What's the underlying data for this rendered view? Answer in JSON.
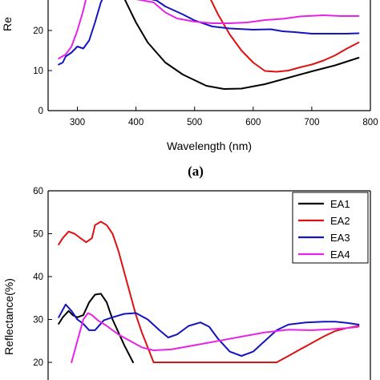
{
  "panel_label": "(a)",
  "chart_data": [
    {
      "type": "line",
      "xlabel": "Wavelength (nm)",
      "ylabel": "Re",
      "xlim": [
        250,
        800
      ],
      "ylim": [
        0,
        30
      ],
      "xticks": [
        300,
        400,
        500,
        600,
        700,
        800
      ],
      "yticks": [
        0,
        10,
        20
      ],
      "series": [
        {
          "color": "#000000",
          "points": [
            [
              370,
              30
            ],
            [
              380,
              28
            ],
            [
              400,
              22
            ],
            [
              420,
              17
            ],
            [
              450,
              12
            ],
            [
              480,
              9
            ],
            [
              500,
              7.6
            ],
            [
              520,
              6.2
            ],
            [
              550,
              5.4
            ],
            [
              580,
              5.5
            ],
            [
              620,
              6.6
            ],
            [
              660,
              8.2
            ],
            [
              700,
              9.8
            ],
            [
              740,
              11.3
            ],
            [
              780,
              13.2
            ]
          ]
        },
        {
          "color": "#dd1111",
          "points": [
            [
              520,
              30
            ],
            [
              540,
              24
            ],
            [
              560,
              19
            ],
            [
              580,
              15
            ],
            [
              600,
              12
            ],
            [
              620,
              9.9
            ],
            [
              640,
              9.7
            ],
            [
              660,
              10
            ],
            [
              680,
              10.8
            ],
            [
              700,
              11.5
            ],
            [
              720,
              12.5
            ],
            [
              740,
              13.8
            ],
            [
              760,
              15.5
            ],
            [
              780,
              17
            ]
          ]
        },
        {
          "color": "#1414c0",
          "points": [
            [
              268,
              11.5
            ],
            [
              275,
              12
            ],
            [
              280,
              13.5
            ],
            [
              290,
              14.5
            ],
            [
              300,
              16
            ],
            [
              310,
              15.5
            ],
            [
              320,
              17.5
            ],
            [
              330,
              22
            ],
            [
              340,
              27
            ],
            [
              350,
              30
            ],
            [
              435,
              27.5
            ],
            [
              450,
              26
            ],
            [
              480,
              24
            ],
            [
              500,
              22.5
            ],
            [
              530,
              21
            ],
            [
              560,
              20.5
            ],
            [
              600,
              20.2
            ],
            [
              630,
              20.3
            ],
            [
              650,
              19.8
            ],
            [
              670,
              19.6
            ],
            [
              700,
              19.2
            ],
            [
              730,
              19.2
            ],
            [
              760,
              19.2
            ],
            [
              780,
              19.3
            ]
          ]
        },
        {
          "color": "#e624e6",
          "points": [
            [
              268,
              13
            ],
            [
              280,
              14
            ],
            [
              290,
              16
            ],
            [
              300,
              20
            ],
            [
              310,
              25
            ],
            [
              318,
              30
            ],
            [
              430,
              27
            ],
            [
              450,
              24.5
            ],
            [
              470,
              23
            ],
            [
              500,
              22.2
            ],
            [
              530,
              21.8
            ],
            [
              560,
              21.8
            ],
            [
              590,
              22
            ],
            [
              620,
              22.6
            ],
            [
              650,
              22.9
            ],
            [
              680,
              23.5
            ],
            [
              720,
              23.8
            ],
            [
              750,
              23.6
            ],
            [
              780,
              23.6
            ]
          ]
        }
      ]
    },
    {
      "type": "line",
      "xlabel": "",
      "ylabel": "Reflectance(%)",
      "xlim": [
        250,
        800
      ],
      "ylim": [
        20,
        60
      ],
      "xticks": [],
      "yticks": [
        20,
        30,
        40,
        50,
        60
      ],
      "legend": "top-right",
      "series": [
        {
          "name": "EA1",
          "color": "#000000",
          "points": [
            [
              268,
              29
            ],
            [
              275,
              30.5
            ],
            [
              285,
              32
            ],
            [
              292,
              31
            ],
            [
              300,
              30.5
            ],
            [
              310,
              31
            ],
            [
              320,
              34
            ],
            [
              330,
              35.8
            ],
            [
              340,
              36
            ],
            [
              350,
              34
            ],
            [
              360,
              30
            ],
            [
              380,
              24
            ],
            [
              395,
              20
            ]
          ]
        },
        {
          "name": "EA2",
          "color": "#dd1111",
          "points": [
            [
              268,
              47.5
            ],
            [
              275,
              49
            ],
            [
              285,
              50.5
            ],
            [
              295,
              50
            ],
            [
              305,
              49
            ],
            [
              315,
              48
            ],
            [
              325,
              49
            ],
            [
              330,
              52
            ],
            [
              340,
              52.8
            ],
            [
              350,
              52
            ],
            [
              360,
              50
            ],
            [
              370,
              46
            ],
            [
              380,
              41
            ],
            [
              390,
              36
            ],
            [
              400,
              31
            ],
            [
              410,
              27
            ],
            [
              420,
              23.5
            ],
            [
              430,
              20
            ],
            [
              640,
              20
            ],
            [
              660,
              21.5
            ],
            [
              680,
              23
            ],
            [
              700,
              24.5
            ],
            [
              720,
              26
            ],
            [
              740,
              27.3
            ],
            [
              760,
              28
            ],
            [
              780,
              28.5
            ]
          ]
        },
        {
          "name": "EA3",
          "color": "#1414c0",
          "points": [
            [
              268,
              30.5
            ],
            [
              280,
              33.5
            ],
            [
              290,
              32
            ],
            [
              300,
              30
            ],
            [
              310,
              29
            ],
            [
              320,
              27.5
            ],
            [
              330,
              27.5
            ],
            [
              345,
              29.8
            ],
            [
              360,
              30.5
            ],
            [
              380,
              31.3
            ],
            [
              400,
              31.5
            ],
            [
              420,
              30
            ],
            [
              440,
              27.5
            ],
            [
              455,
              25.8
            ],
            [
              470,
              26.5
            ],
            [
              490,
              28.5
            ],
            [
              510,
              29.3
            ],
            [
              525,
              28.3
            ],
            [
              540,
              25.5
            ],
            [
              560,
              22.5
            ],
            [
              580,
              21.5
            ],
            [
              600,
              22.5
            ],
            [
              620,
              25
            ],
            [
              640,
              27.5
            ],
            [
              660,
              28.8
            ],
            [
              690,
              29.3
            ],
            [
              720,
              29.5
            ],
            [
              740,
              29.5
            ],
            [
              760,
              29.2
            ],
            [
              780,
              28.8
            ]
          ]
        },
        {
          "name": "EA4",
          "color": "#e624e6",
          "points": [
            [
              290,
              20
            ],
            [
              300,
              25
            ],
            [
              310,
              30
            ],
            [
              318,
              31.5
            ],
            [
              325,
              31
            ],
            [
              335,
              29.8
            ],
            [
              350,
              28.5
            ],
            [
              370,
              26.5
            ],
            [
              390,
              25
            ],
            [
              410,
              23.5
            ],
            [
              430,
              22.8
            ],
            [
              460,
              23
            ],
            [
              500,
              24
            ],
            [
              540,
              25
            ],
            [
              580,
              26
            ],
            [
              620,
              27
            ],
            [
              660,
              27.6
            ],
            [
              700,
              27.5
            ],
            [
              730,
              27.7
            ],
            [
              760,
              28
            ],
            [
              780,
              28.3
            ]
          ]
        }
      ]
    }
  ]
}
